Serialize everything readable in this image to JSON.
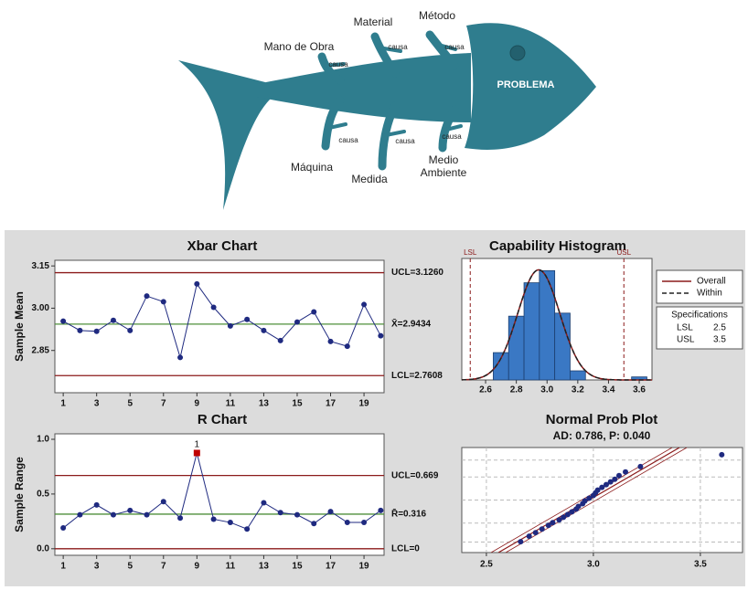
{
  "diagram": {
    "problem": "PROBLEMA",
    "causes": [
      {
        "category": "Mano de Obra",
        "cause": "causa"
      },
      {
        "category": "Material",
        "cause": "causa"
      },
      {
        "category": "Método",
        "cause": "causa"
      },
      {
        "category": "Máquina",
        "cause": "causa"
      },
      {
        "category": "Medida",
        "cause": "causa"
      },
      {
        "category": "Medio Ambiente",
        "cause": "causa"
      }
    ]
  },
  "chart_data": [
    {
      "type": "control",
      "title": "Xbar Chart",
      "y_label": "Sample Mean",
      "x": [
        1,
        2,
        3,
        4,
        5,
        6,
        7,
        8,
        9,
        10,
        11,
        12,
        13,
        14,
        15,
        16,
        17,
        18,
        19,
        20
      ],
      "values": [
        2.954,
        2.921,
        2.918,
        2.957,
        2.921,
        3.043,
        3.023,
        2.825,
        3.086,
        3.003,
        2.937,
        2.96,
        2.921,
        2.885,
        2.951,
        2.987,
        2.882,
        2.865,
        3.013,
        2.902
      ],
      "color": "#1f2a80",
      "xlim": [
        0.5,
        20.2
      ],
      "xticks": [
        1,
        3,
        5,
        7,
        9,
        11,
        13,
        15,
        17,
        19
      ],
      "ylim": [
        2.7,
        3.17
      ],
      "yticks": [
        2.85,
        {
          "value": 3,
          "label": "3.00"
        },
        3.15
      ],
      "limits": [
        {
          "label": "UCL=3.1260",
          "value": 3.126,
          "color": "#8b1a1a"
        },
        {
          "label": "X̄=2.9434",
          "value": 2.9434,
          "color": "#4f8f3a"
        },
        {
          "label": "LCL=2.7608",
          "value": 2.7608,
          "color": "#8b1a1a"
        }
      ]
    },
    {
      "type": "control",
      "title": "R Chart",
      "y_label": "Sample Range",
      "x": [
        1,
        2,
        3,
        4,
        5,
        6,
        7,
        8,
        9,
        10,
        11,
        12,
        13,
        14,
        15,
        16,
        17,
        18,
        19,
        20
      ],
      "values": [
        0.19,
        0.31,
        0.4,
        0.31,
        0.35,
        0.31,
        0.43,
        0.28,
        0.875,
        0.27,
        0.24,
        0.18,
        0.42,
        0.33,
        0.31,
        0.23,
        0.34,
        0.24,
        0.24,
        0.35
      ],
      "color": "#1f2a80",
      "xlim": [
        0.5,
        20.2
      ],
      "xticks": [
        1,
        3,
        5,
        7,
        9,
        11,
        13,
        15,
        17,
        19
      ],
      "ylim": [
        -0.06,
        1.05
      ],
      "yticks": [
        {
          "value": 0,
          "label": "0.0"
        },
        0.5,
        {
          "value": 1,
          "label": "1.0"
        }
      ],
      "limits": [
        {
          "label": "UCL=0.669",
          "value": 0.669,
          "color": "#8b1a1a"
        },
        {
          "label": "R̄=0.316",
          "value": 0.316,
          "color": "#4f8f3a"
        },
        {
          "label": "LCL=0",
          "value": 0,
          "color": "#8b1a1a"
        }
      ],
      "flags": [
        {
          "label": "1",
          "x": 9,
          "color": "#c00000"
        }
      ]
    },
    {
      "type": "histogram",
      "title": "Capability Histogram",
      "bins": [
        2.65,
        2.75,
        2.85,
        2.95,
        3.05,
        3.15,
        3.25,
        3.35,
        3.45,
        3.55,
        3.65
      ],
      "counts": [
        9,
        21,
        32,
        36,
        22,
        3,
        0,
        0,
        0,
        1
      ],
      "color": "#3a78c4",
      "xlim": [
        2.445,
        3.683
      ],
      "xticks": [
        2.6,
        2.8,
        {
          "value": 3,
          "label": "3.0"
        },
        3.2,
        3.4,
        3.6
      ],
      "ylim": [
        0,
        40
      ],
      "spec_limits": [
        {
          "label": "LSL",
          "value": 2.5,
          "color": "#8b1a1a"
        },
        {
          "label": "USL",
          "value": 3.5,
          "color": "#8b1a1a"
        }
      ],
      "series": [
        {
          "name": "Overall",
          "color": "#8b1a1a"
        },
        {
          "name": "Within",
          "color": "#222222"
        }
      ],
      "specifications": {
        "title": "Specifications",
        "rows": [
          [
            "LSL",
            "2.5"
          ],
          [
            "USL",
            "3.5"
          ]
        ]
      }
    },
    {
      "type": "probability",
      "title": "Normal Prob Plot",
      "subtitle": "AD: 0.786, P: 0.040",
      "x": [
        2.66,
        2.7,
        2.73,
        2.76,
        2.79,
        2.81,
        2.84,
        2.86,
        2.88,
        2.9,
        2.92,
        2.93,
        2.95,
        2.96,
        2.98,
        3.0,
        3.01,
        3.02,
        3.04,
        3.06,
        3.08,
        3.1,
        3.12,
        3.15,
        3.22,
        3.6
      ],
      "y": [
        -2.4,
        -2.1,
        -1.9,
        -1.7,
        -1.5,
        -1.35,
        -1.2,
        -1.05,
        -0.9,
        -0.75,
        -0.6,
        -0.45,
        -0.3,
        -0.15,
        0,
        0.15,
        0.3,
        0.45,
        0.6,
        0.75,
        0.9,
        1.05,
        1.25,
        1.45,
        1.75,
        2.4
      ],
      "color": "#1f2a80",
      "xlim": [
        2.385,
        3.697
      ],
      "xticks": [
        2.5,
        {
          "value": 3,
          "label": "3.0"
        },
        3.5
      ],
      "ylim": [
        -3,
        2.8
      ],
      "grid": true
    }
  ]
}
